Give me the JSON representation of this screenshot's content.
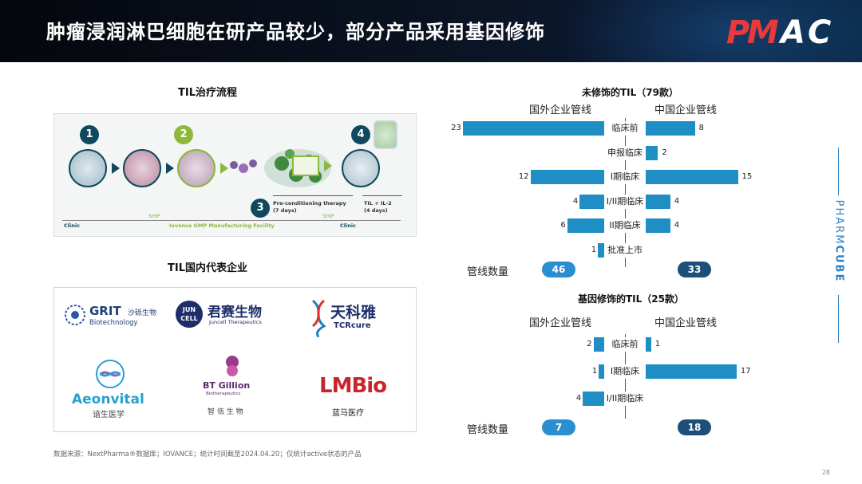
{
  "header": {
    "title": "肿瘤浸润淋巴细胞在研产品较少，部分产品采用基因修饰",
    "logo_text": "PHARMCUBE-PMAC"
  },
  "side_brand": {
    "prefix": "PHARM",
    "suffix": "CUBE"
  },
  "flow": {
    "title": "TIL治疗流程",
    "steps": [
      "1",
      "2",
      "3",
      "4"
    ],
    "preconditioning": "Pre-conditioning therapy",
    "preconditioning_days": "(7 days)",
    "til": "TIL + IL-2",
    "til_days": "(4 days)",
    "clinic_left": "Clinic",
    "ship_left": "SHIP",
    "facility": "Iovance GMP Manufacturing Facility",
    "ship_right": "SHIP",
    "clinic_right": "Clinic"
  },
  "companies": {
    "title": "TIL国内代表企业",
    "grit_name": "GRIT",
    "grit_cn": "沙砾生物",
    "grit_en": "Biotechnology",
    "juncell_badge_top": "JUN",
    "juncell_badge_bottom": "CELL",
    "juncell_cn": "君赛生物",
    "juncell_en": "Juncell Therapeutics",
    "tcrcure_cn": "天科雅",
    "tcrcure_en": "TCRcure",
    "aeonvital_en": "Aeonvital",
    "aeonvital_cn": "谙生医学",
    "btgillion_en": "BT Gillion",
    "btgillion_sub": "Biotherapeutics",
    "btgillion_cn": "智 瓴 生 物",
    "lmbio_en": "LMBio",
    "lmbio_cn": "蓝马医疗"
  },
  "source": "数据来源：NextPharma®数据库；IOVANCE；统计时间截至2024.04.20；仅统计active状态的产品",
  "page_number": "28",
  "colors": {
    "bar": "#1f8ec4",
    "pill_light": "#2a8fd0",
    "pill_dark": "#1d4f78",
    "header_bg": "#05070d"
  },
  "chart_data": [
    {
      "type": "bar",
      "title": "未修饰的TIL（79款）",
      "left_label": "国外企业管线",
      "right_label": "中国企业管线",
      "categories": [
        "临床前",
        "申报临床",
        "I期临床",
        "I/II期临床",
        "II期临床",
        "批准上市"
      ],
      "series": [
        {
          "name": "国外企业管线",
          "values": [
            23,
            null,
            12,
            4,
            6,
            1
          ]
        },
        {
          "name": "中国企业管线",
          "values": [
            8,
            2,
            15,
            4,
            4,
            null
          ]
        }
      ],
      "count_label": "管线数量",
      "totals": {
        "left": "46",
        "right": "33"
      }
    },
    {
      "type": "bar",
      "title": "基因修饰的TIL（25款）",
      "left_label": "国外企业管线",
      "right_label": "中国企业管线",
      "categories": [
        "临床前",
        "I期临床",
        "I/II期临床"
      ],
      "series": [
        {
          "name": "国外企业管线",
          "values": [
            2,
            1,
            4
          ]
        },
        {
          "name": "中国企业管线",
          "values": [
            1,
            17,
            null
          ]
        }
      ],
      "count_label": "管线数量",
      "totals": {
        "left": "7",
        "right": "18"
      }
    }
  ]
}
